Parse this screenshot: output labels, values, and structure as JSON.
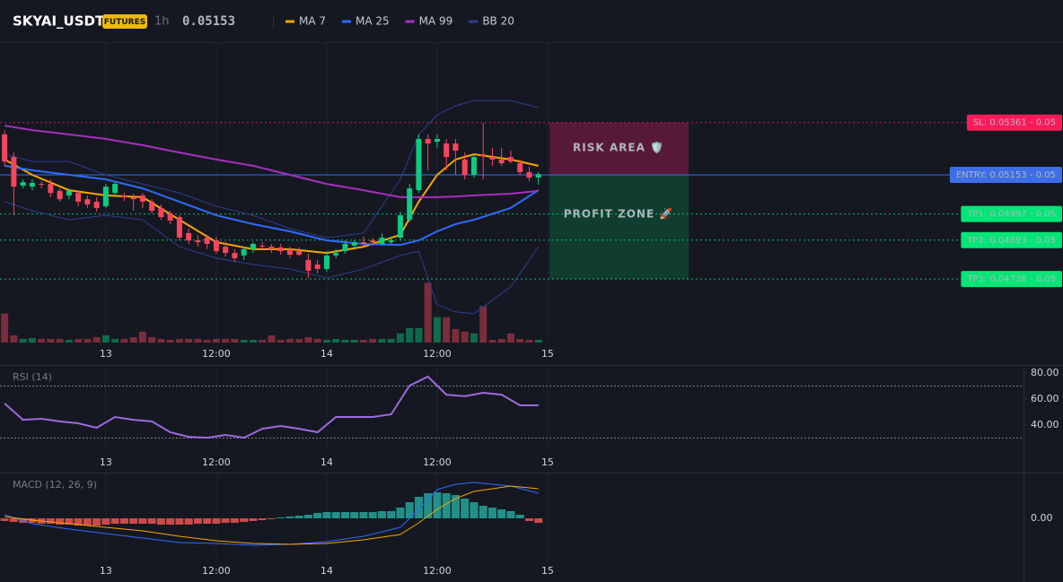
{
  "header": {
    "symbol": "SKYAI_USDT",
    "badge": "FUTURES",
    "interval": "1h",
    "price": "0.05153",
    "price_color": "#f6465d"
  },
  "chart_data": [
    {
      "type": "candlestick",
      "xlim": [
        -11.5,
        100
      ],
      "ylim": [
        0.04485,
        0.05678
      ],
      "xticks": [
        {
          "value": 0,
          "label": "13"
        },
        {
          "value": 12,
          "label": "12:00"
        },
        {
          "value": 24,
          "label": "14"
        },
        {
          "value": 36,
          "label": "12:00"
        },
        {
          "value": 48,
          "label": "15"
        }
      ],
      "up_color": "#0ecb81",
      "down_color": "#f6465d",
      "x": [
        -11,
        -10,
        -9,
        -8,
        -7,
        -6,
        -5,
        -4,
        -3,
        -2,
        -1,
        0,
        1,
        2,
        3,
        4,
        5,
        6,
        7,
        8,
        9,
        10,
        11,
        12,
        13,
        14,
        15,
        16,
        17,
        18,
        19,
        20,
        21,
        22,
        23,
        24,
        25,
        26,
        27,
        28,
        29,
        30,
        31,
        32,
        33,
        34,
        35,
        36,
        37,
        38,
        39,
        40,
        41,
        42,
        43,
        44,
        45,
        46,
        47
      ],
      "open": [
        0.05314,
        0.05224,
        0.0511,
        0.05106,
        0.05117,
        0.05117,
        0.05089,
        0.05071,
        0.05081,
        0.05056,
        0.05046,
        0.05028,
        0.05081,
        0.05071,
        0.05064,
        0.05071,
        0.05046,
        0.05021,
        0.04999,
        0.04985,
        0.04921,
        0.04892,
        0.04903,
        0.04892,
        0.04867,
        0.04842,
        0.04832,
        0.04857,
        0.04871,
        0.04867,
        0.04864,
        0.04857,
        0.04849,
        0.04814,
        0.04796,
        0.04778,
        0.04832,
        0.04849,
        0.04871,
        0.04885,
        0.04892,
        0.04878,
        0.04885,
        0.04903,
        0.04974,
        0.05092,
        0.05296,
        0.05285,
        0.05278,
        0.05278,
        0.05214,
        0.05153,
        0.05235,
        0.05224,
        0.05214,
        0.05224,
        0.05199,
        0.05164,
        0.05142
      ],
      "high": [
        0.05331,
        0.05242,
        0.05135,
        0.05135,
        0.05128,
        0.05135,
        0.05099,
        0.05099,
        0.05092,
        0.05071,
        0.05064,
        0.05117,
        0.05124,
        0.05081,
        0.05078,
        0.05081,
        0.05056,
        0.05035,
        0.0501,
        0.04992,
        0.04939,
        0.04914,
        0.04914,
        0.04907,
        0.04885,
        0.04857,
        0.04867,
        0.04885,
        0.04885,
        0.04878,
        0.04878,
        0.04867,
        0.04864,
        0.04839,
        0.04814,
        0.04849,
        0.04857,
        0.04892,
        0.04892,
        0.04907,
        0.04903,
        0.04921,
        0.04907,
        0.05006,
        0.05117,
        0.05314,
        0.05314,
        0.05314,
        0.05296,
        0.05296,
        0.05242,
        0.05235,
        0.0536,
        0.0526,
        0.0526,
        0.05249,
        0.05214,
        0.05185,
        0.05164
      ],
      "low": [
        0.05189,
        0.04992,
        0.05099,
        0.05092,
        0.05099,
        0.05064,
        0.05046,
        0.05056,
        0.05028,
        0.05021,
        0.05006,
        0.05021,
        0.05071,
        0.05049,
        0.0501,
        0.05021,
        0.04999,
        0.04974,
        0.04957,
        0.04892,
        0.04878,
        0.04867,
        0.04857,
        0.04839,
        0.04828,
        0.04807,
        0.04814,
        0.04842,
        0.04857,
        0.04842,
        0.04835,
        0.04821,
        0.04828,
        0.04742,
        0.0476,
        0.04767,
        0.04821,
        0.04839,
        0.04864,
        0.04867,
        0.04871,
        0.04871,
        0.04878,
        0.04892,
        0.04964,
        0.05081,
        0.05171,
        0.0526,
        0.05171,
        0.05153,
        0.05135,
        0.05142,
        0.05135,
        0.05189,
        0.05189,
        0.05199,
        0.05153,
        0.05128,
        0.05114
      ],
      "close": [
        0.05206,
        0.05106,
        0.05124,
        0.05121,
        0.05114,
        0.05081,
        0.05056,
        0.05089,
        0.05046,
        0.05035,
        0.05021,
        0.05106,
        0.05117,
        0.05064,
        0.05056,
        0.05046,
        0.0501,
        0.04985,
        0.04971,
        0.04903,
        0.04892,
        0.04885,
        0.04878,
        0.04849,
        0.04842,
        0.04821,
        0.04857,
        0.04878,
        0.04867,
        0.04857,
        0.04849,
        0.04835,
        0.04835,
        0.04771,
        0.04778,
        0.04832,
        0.04842,
        0.04878,
        0.04885,
        0.04878,
        0.04885,
        0.04903,
        0.04892,
        0.04992,
        0.05099,
        0.05296,
        0.05278,
        0.05296,
        0.05224,
        0.05249,
        0.05153,
        0.05224,
        0.05228,
        0.05214,
        0.05199,
        0.05206,
        0.05164,
        0.05142,
        0.05156
      ],
      "volume": [
        32,
        8,
        4,
        5,
        4,
        4,
        4,
        3,
        4,
        4,
        6,
        8,
        4,
        4,
        6,
        12,
        6,
        4,
        3,
        4,
        4,
        4,
        3,
        4,
        4,
        4,
        3,
        3,
        3,
        8,
        3,
        4,
        4,
        6,
        4,
        3,
        4,
        3,
        3,
        3,
        4,
        4,
        4,
        10,
        16,
        16,
        66,
        28,
        28,
        15,
        12,
        10,
        40,
        3,
        4,
        10,
        4,
        3,
        3
      ],
      "volume_ylim": [
        0,
        330
      ],
      "lines": [
        {
          "name": "MA 7",
          "color": "#f7a600",
          "x": [
            -11,
            -8,
            -4,
            0,
            4,
            8,
            12,
            16,
            20,
            24,
            28,
            32,
            34,
            36,
            38,
            40,
            44,
            47
          ],
          "values": [
            0.05214,
            0.05153,
            0.05092,
            0.05071,
            0.05064,
            0.04974,
            0.04885,
            0.04857,
            0.04857,
            0.04842,
            0.04867,
            0.04914,
            0.05046,
            0.05153,
            0.05214,
            0.05235,
            0.05214,
            0.05189
          ]
        },
        {
          "name": "MA 25",
          "color": "#2f6bff",
          "x": [
            -11,
            -8,
            -4,
            0,
            4,
            8,
            12,
            16,
            20,
            24,
            28,
            32,
            34,
            36,
            38,
            40,
            44,
            47
          ],
          "values": [
            0.05189,
            0.05171,
            0.05153,
            0.05135,
            0.05099,
            0.05046,
            0.04992,
            0.04957,
            0.04928,
            0.04892,
            0.04878,
            0.04874,
            0.04892,
            0.04928,
            0.04957,
            0.04974,
            0.05021,
            0.05092
          ]
        },
        {
          "name": "MA 99",
          "color": "#a62fc0",
          "x": [
            -11,
            -8,
            -4,
            0,
            4,
            8,
            12,
            16,
            20,
            24,
            28,
            32,
            34,
            36,
            38,
            40,
            44,
            47
          ],
          "values": [
            0.05349,
            0.05331,
            0.05314,
            0.05296,
            0.05271,
            0.05242,
            0.05214,
            0.05189,
            0.05153,
            0.05117,
            0.05092,
            0.05064,
            0.05064,
            0.05064,
            0.05067,
            0.05071,
            0.05078,
            0.05089
          ]
        }
      ],
      "bands": {
        "name": "BB 20",
        "color": "#2b3f8c",
        "x": [
          -11,
          -8,
          -4,
          0,
          4,
          8,
          12,
          16,
          20,
          24,
          28,
          32,
          34,
          36,
          38,
          40,
          44,
          47
        ],
        "upper": [
          0.05235,
          0.05206,
          0.05206,
          0.05153,
          0.05117,
          0.05081,
          0.05028,
          0.04992,
          0.04939,
          0.04903,
          0.04921,
          0.05135,
          0.05314,
          0.05392,
          0.05428,
          0.05449,
          0.05449,
          0.05421
        ],
        "lower": [
          0.05046,
          0.0501,
          0.04974,
          0.04992,
          0.04974,
          0.04867,
          0.04821,
          0.04796,
          0.04778,
          0.04742,
          0.04778,
          0.04832,
          0.04849,
          0.04635,
          0.04607,
          0.046,
          0.04707,
          0.04867
        ]
      },
      "levels": [
        {
          "label": "SL: 0.05361 - 0.05",
          "value": 0.05361,
          "color": "#ff1a5c",
          "text_color": "#ffffff",
          "style": "dotted"
        },
        {
          "label": "ENTRY: 0.05153 - 0.05",
          "value": 0.05153,
          "color": "#3d6ee8",
          "text_color": "#ffffff",
          "style": "solid"
        },
        {
          "label": "TP1: 0.04997 - 0.05",
          "value": 0.04997,
          "color": "#00e676",
          "text_color": "#0b2a18",
          "style": "dotted"
        },
        {
          "label": "TP2: 0.04893 - 0.05",
          "value": 0.04893,
          "color": "#00e676",
          "text_color": "#0b2a18",
          "style": "dotted"
        },
        {
          "label": "TP3: 0.04738 - 0.05",
          "value": 0.04738,
          "color": "#00e676",
          "text_color": "#0b2a18",
          "style": "dotted"
        }
      ],
      "zones": [
        {
          "label": "RISK AREA 🛡️",
          "from": 0.05361,
          "to": 0.05153,
          "color": "#6e1a40",
          "text_color": "#e8245e"
        },
        {
          "label": "PROFIT ZONE 🚀",
          "from": 0.05153,
          "to": 0.04738,
          "color": "#0f4a34",
          "text_color": "#2ecc71"
        }
      ]
    },
    {
      "type": "line",
      "title": "RSI (14)",
      "xlim": [
        -11.5,
        100
      ],
      "ylim": [
        20.7,
        85.5
      ],
      "xticks": [
        {
          "value": 0,
          "label": "13"
        },
        {
          "value": 12,
          "label": "12:00"
        },
        {
          "value": 24,
          "label": "14"
        },
        {
          "value": 36,
          "label": "12:00"
        },
        {
          "value": 48,
          "label": "15"
        }
      ],
      "yticks": [
        {
          "value": 80,
          "label": "80.00"
        },
        {
          "value": 60,
          "label": "60.00"
        },
        {
          "value": 40,
          "label": "40.00"
        }
      ],
      "levels": [
        70,
        30
      ],
      "series": [
        {
          "color": "#9c6ade",
          "x": [
            -11,
            -9,
            -7,
            -5,
            -3,
            -1,
            1,
            3,
            5,
            7,
            9,
            11,
            13,
            15,
            17,
            19,
            21,
            23,
            25,
            27,
            29,
            31,
            33,
            35,
            37,
            39,
            41,
            43,
            45,
            47
          ],
          "values": [
            56.6,
            44.1,
            44.8,
            42.8,
            41.4,
            37.9,
            46.2,
            44.1,
            42.8,
            34.5,
            31.0,
            30.3,
            32.4,
            30.3,
            37.2,
            39.3,
            37.2,
            34.5,
            46.2,
            46.2,
            46.2,
            48.3,
            70.3,
            77.2,
            63.4,
            62.1,
            64.8,
            63.4,
            55.2,
            55.2
          ]
        }
      ]
    },
    {
      "type": "macd",
      "title": "MACD (12, 26, 9)",
      "xlim": [
        -11.5,
        100
      ],
      "ylim": [
        -0.0005,
        0.0005
      ],
      "xticks": [
        {
          "value": 0,
          "label": "13"
        },
        {
          "value": 12,
          "label": "12:00"
        },
        {
          "value": 24,
          "label": "14"
        },
        {
          "value": 36,
          "label": "12:00"
        },
        {
          "value": 48,
          "label": "15"
        }
      ],
      "yticks": [
        {
          "value": 0,
          "label": "0.00"
        }
      ],
      "pos_color": "#26a69a",
      "neg_color": "#ef5350",
      "hist_x": [
        -11,
        -10,
        -9,
        -8,
        -7,
        -6,
        -5,
        -4,
        -3,
        -2,
        -1,
        0,
        1,
        2,
        3,
        4,
        5,
        6,
        7,
        8,
        9,
        10,
        11,
        12,
        13,
        14,
        15,
        16,
        17,
        18,
        19,
        20,
        21,
        22,
        23,
        24,
        25,
        26,
        27,
        28,
        29,
        30,
        31,
        32,
        33,
        34,
        35,
        36,
        37,
        38,
        39,
        40,
        41,
        42,
        43,
        44,
        45,
        46,
        47
      ],
      "histogram": [
        -3e-05,
        -4e-05,
        -5e-05,
        -5e-05,
        -6e-05,
        -6e-05,
        -7e-05,
        -7e-05,
        -8e-05,
        -8e-05,
        -8e-05,
        -7e-05,
        -6e-05,
        -6e-05,
        -6e-05,
        -6e-05,
        -6e-05,
        -7e-05,
        -7e-05,
        -7e-05,
        -7e-05,
        -6e-05,
        -6e-05,
        -6e-05,
        -5e-05,
        -5e-05,
        -4e-05,
        -3e-05,
        -2e-05,
        -1e-05,
        1e-05,
        2e-05,
        3e-05,
        4e-05,
        6e-05,
        7e-05,
        7e-05,
        7e-05,
        7e-05,
        7e-05,
        7e-05,
        8e-05,
        8e-05,
        0.00012,
        0.00018,
        0.00024,
        0.00028,
        0.00029,
        0.00028,
        0.00026,
        0.00022,
        0.00018,
        0.00014,
        0.00012,
        0.0001,
        8e-05,
        4e-05,
        -3e-05,
        -5e-05
      ],
      "series": [
        {
          "color": "#2f6bff",
          "x": [
            -11,
            -8,
            -4,
            0,
            4,
            8,
            12,
            16,
            20,
            24,
            28,
            32,
            34,
            36,
            38,
            40,
            44,
            47
          ],
          "values": [
            4e-05,
            -6e-05,
            -0.00012,
            -0.00017,
            -0.00022,
            -0.00027,
            -0.00028,
            -0.0003,
            -0.00029,
            -0.00026,
            -0.0002,
            -0.0001,
            0.0001,
            0.00032,
            0.00038,
            0.0004,
            0.00036,
            0.00028
          ]
        },
        {
          "color": "#f7a600",
          "x": [
            -11,
            -8,
            -4,
            0,
            4,
            8,
            12,
            16,
            20,
            24,
            28,
            32,
            34,
            36,
            38,
            40,
            44,
            47
          ],
          "values": [
            2e-05,
            -2e-05,
            -6e-05,
            -0.0001,
            -0.00014,
            -0.0002,
            -0.00025,
            -0.00028,
            -0.00029,
            -0.00028,
            -0.00024,
            -0.00018,
            -5e-05,
            0.0001,
            0.00022,
            0.0003,
            0.00036,
            0.00033
          ]
        }
      ]
    }
  ]
}
